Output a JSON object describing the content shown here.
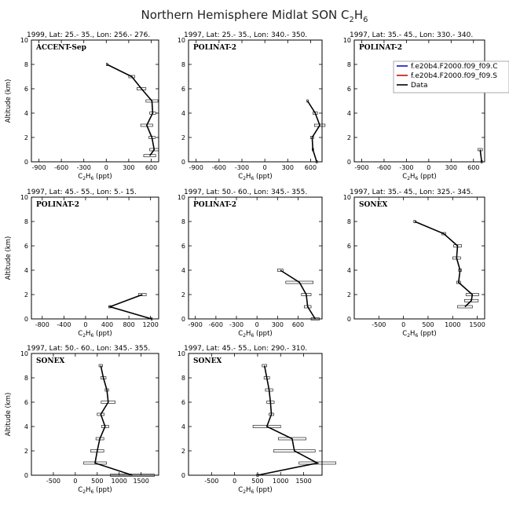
{
  "figure": {
    "title_main": "Northern Hemisphere Midlat SON C",
    "title_sub": "2",
    "title_tail": "H",
    "title_sub2": "6"
  },
  "legend": {
    "entries": [
      {
        "label": "f.e20b4.F2000.f09_f09.C",
        "color": "#1010c0"
      },
      {
        "label": "f.e20b4.F2000.f09_f09.S",
        "color": "#c01010"
      },
      {
        "label": "Data",
        "color": "#000000"
      }
    ]
  },
  "chart_data": [
    {
      "type": "line",
      "title": "1999, Lat: 25.- 35., Lon: 256.- 276.",
      "campaign": "ACCENT-Sep",
      "xlim": [
        -1000,
        700
      ],
      "xticks": [
        -900,
        -600,
        -300,
        0,
        300,
        600
      ],
      "ylim": [
        0,
        10
      ],
      "xlabel": "C2H6 (ppt)",
      "ylabel": "Altitude (km)",
      "y": [
        0.5,
        1,
        2,
        3,
        4,
        5,
        6,
        7,
        8
      ],
      "x": [
        580,
        640,
        610,
        540,
        620,
        610,
        470,
        340,
        10
      ],
      "err": [
        80,
        60,
        40,
        80,
        40,
        80,
        60,
        40,
        10
      ]
    },
    {
      "type": "line",
      "title": "1997, Lat: 25.- 35., Lon: 340.- 350.",
      "campaign": "POLINAT-2",
      "xlim": [
        -1000,
        750
      ],
      "xticks": [
        -900,
        -600,
        -300,
        0,
        300,
        600
      ],
      "ylim": [
        0,
        10
      ],
      "xlabel": "C2H6 (ppt)",
      "ylabel": "",
      "y": [
        0,
        1,
        2,
        3,
        4,
        5
      ],
      "x": [
        680,
        630,
        620,
        720,
        660,
        560
      ],
      "err": [
        10,
        10,
        20,
        70,
        30,
        10
      ]
    },
    {
      "type": "line",
      "title": "1997, Lat: 35.- 45., Lon: 330.- 340.",
      "campaign": "POLINAT-2",
      "xlim": [
        -1000,
        750
      ],
      "xticks": [
        -900,
        -600,
        -300,
        0,
        300,
        600
      ],
      "ylim": [
        0,
        10
      ],
      "xlabel": "C2H6 (ppt)",
      "ylabel": "",
      "y": [
        0,
        1
      ],
      "x": [
        710,
        690
      ],
      "err": [
        10,
        30
      ]
    },
    {
      "type": "line",
      "title": "1997, Lat: 45.- 55., Lon: 5.- 15.",
      "campaign": "POLINAT-2",
      "xlim": [
        -1000,
        1350
      ],
      "xticks": [
        -800,
        -400,
        0,
        400,
        800,
        1200
      ],
      "ylim": [
        0,
        10
      ],
      "xlabel": "C2H6 (ppt)",
      "ylabel": "Altitude (km)",
      "y": [
        0,
        1,
        2
      ],
      "x": [
        1220,
        450,
        1050
      ],
      "err": [
        10,
        20,
        70
      ]
    },
    {
      "type": "line",
      "title": "1997, Lat: 50.- 60., Lon: 345.- 355.",
      "campaign": "POLINAT-2",
      "xlim": [
        -1000,
        950
      ],
      "xticks": [
        -900,
        -600,
        -300,
        0,
        300,
        600
      ],
      "ylim": [
        0,
        10
      ],
      "xlabel": "C2H6 (ppt)",
      "ylabel": "",
      "y": [
        0,
        1,
        2,
        3,
        4
      ],
      "x": [
        850,
        740,
        720,
        620,
        340
      ],
      "err": [
        60,
        50,
        70,
        200,
        40
      ]
    },
    {
      "type": "line",
      "title": "1997, Lat: 35.- 45., Lon: 325.- 345.",
      "campaign": "SONEX",
      "xlim": [
        -1000,
        1650
      ],
      "xticks": [
        -500,
        0,
        500,
        1000,
        1500
      ],
      "ylim": [
        0,
        10
      ],
      "xlabel": "C2H6 (ppt)",
      "ylabel": "",
      "y": [
        1,
        1.5,
        2,
        3,
        4,
        5,
        6,
        7,
        8
      ],
      "x": [
        1250,
        1380,
        1400,
        1120,
        1150,
        1080,
        1100,
        820,
        230
      ],
      "err": [
        150,
        140,
        130,
        40,
        30,
        80,
        80,
        40,
        20
      ]
    },
    {
      "type": "line",
      "title": "1997, Lat: 50.- 60., Lon: 345.- 355.",
      "campaign": "SONEX",
      "xlim": [
        -1000,
        1900
      ],
      "xticks": [
        -500,
        0,
        500,
        1000,
        1500
      ],
      "ylim": [
        0,
        10
      ],
      "xlabel": "C2H6 (ppt)",
      "ylabel": "Altitude (km)",
      "y": [
        0,
        1,
        2,
        3,
        4,
        5,
        6,
        7,
        8,
        9
      ],
      "x": [
        1300,
        450,
        500,
        560,
        680,
        580,
        750,
        720,
        640,
        580
      ],
      "err": [
        500,
        260,
        150,
        90,
        80,
        80,
        160,
        40,
        60,
        40
      ]
    },
    {
      "type": "line",
      "title": "1997, Lat: 45.- 55., Lon: 290.- 310.",
      "campaign": "SONEX",
      "xlim": [
        -1000,
        1900
      ],
      "xticks": [
        -500,
        0,
        500,
        1000,
        1500
      ],
      "ylim": [
        0,
        10
      ],
      "xlabel": "C2H6 (ppt)",
      "ylabel": "",
      "y": [
        0,
        1,
        2,
        3,
        4,
        5,
        6,
        7,
        8,
        9
      ],
      "x": [
        500,
        1800,
        1300,
        1250,
        700,
        800,
        780,
        750,
        700,
        650
      ],
      "err": [
        20,
        400,
        450,
        300,
        300,
        50,
        80,
        80,
        60,
        50
      ]
    }
  ]
}
